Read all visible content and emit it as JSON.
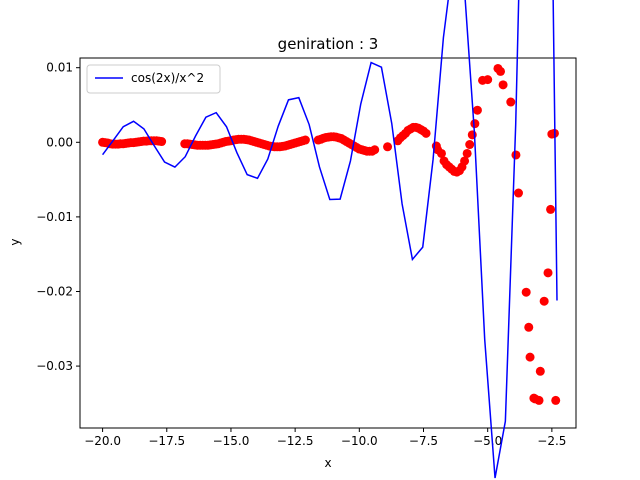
{
  "chart_data": {
    "type": "line",
    "title": "geniration : 3",
    "xlabel": "x",
    "ylabel": "y",
    "xlim": [
      -20.88,
      -1.56
    ],
    "ylim": [
      -0.0383,
      0.0113
    ],
    "x_ticks": [
      -20.0,
      -17.5,
      -15.0,
      -12.5,
      -10.0,
      -7.5,
      -5.0,
      -2.5
    ],
    "x_tick_labels": [
      "−20.0",
      "−17.5",
      "−15.0",
      "−12.5",
      "−10.0",
      "−7.5",
      "−5.0",
      "−2.5"
    ],
    "y_ticks": [
      0.01,
      0.0,
      -0.01,
      -0.02,
      -0.03
    ],
    "y_tick_labels": [
      "0.01",
      "0.00",
      "−0.01",
      "−0.02",
      "−0.03"
    ],
    "legend_position": "top-left",
    "series": [
      {
        "name": "cos(2x)/x^2",
        "kind": "line",
        "color": "#0000ff",
        "function": "cos(2x)/x^2",
        "x_range": [
          -20.0,
          -2.3
        ],
        "samples": 45
      },
      {
        "name": "",
        "kind": "scatter",
        "color": "#ff0000",
        "x": [
          -20.0,
          -19.9,
          -19.8,
          -19.7,
          -19.6,
          -19.5,
          -19.4,
          -19.3,
          -19.2,
          -19.1,
          -19.0,
          -18.9,
          -18.8,
          -18.7,
          -18.6,
          -18.5,
          -18.4,
          -18.3,
          -18.2,
          -18.1,
          -18.0,
          -17.9,
          -17.8,
          -17.7,
          -16.8,
          -16.7,
          -16.6,
          -16.5,
          -16.4,
          -16.3,
          -16.2,
          -16.1,
          -16.0,
          -15.9,
          -15.8,
          -15.7,
          -15.6,
          -15.5,
          -15.4,
          -15.3,
          -15.2,
          -15.1,
          -15.0,
          -14.9,
          -14.8,
          -14.7,
          -14.6,
          -14.5,
          -14.4,
          -14.3,
          -14.2,
          -14.1,
          -14.0,
          -13.9,
          -13.8,
          -13.7,
          -13.6,
          -13.5,
          -13.4,
          -13.3,
          -13.2,
          -13.1,
          -13.0,
          -12.9,
          -12.8,
          -12.7,
          -12.6,
          -12.5,
          -12.4,
          -12.3,
          -12.2,
          -12.1,
          -11.6,
          -11.5,
          -11.4,
          -11.3,
          -11.2,
          -11.1,
          -11.0,
          -10.9,
          -10.8,
          -10.7,
          -10.6,
          -10.5,
          -10.4,
          -10.3,
          -10.2,
          -10.1,
          -10.0,
          -9.9,
          -9.8,
          -9.7,
          -9.6,
          -9.5,
          -9.4,
          -8.9,
          -8.5,
          -8.4,
          -8.3,
          -8.2,
          -8.1,
          -8.0,
          -7.9,
          -7.8,
          -7.7,
          -7.6,
          -7.5,
          -7.4,
          -7.0,
          -6.95,
          -6.8,
          -6.7,
          -6.6,
          -6.5,
          -6.4,
          -6.3,
          -6.2,
          -6.1,
          -6.0,
          -5.9,
          -5.8,
          -5.7,
          -5.6,
          -5.5,
          -5.4,
          -5.2,
          -5.0,
          -4.6,
          -4.5,
          -4.4,
          -4.1,
          -3.9,
          -3.8,
          -3.5,
          -3.4,
          -3.35,
          -3.2,
          -3.15,
          -3.0,
          -2.95,
          -2.8,
          -2.65,
          -2.55,
          -2.5,
          -2.4,
          -2.35
        ],
        "y": [
          0.0,
          -5e-05,
          -0.0001,
          -0.0002,
          -0.00025,
          -0.00025,
          -0.00025,
          -0.0002,
          -0.0002,
          -0.00015,
          -0.0001,
          -5e-05,
          -5e-05,
          0.0,
          5e-05,
          0.0001,
          0.00015,
          0.00015,
          0.0002,
          0.0002,
          0.0002,
          0.0002,
          0.00015,
          0.0001,
          -0.0002,
          -0.0002,
          -0.00025,
          -0.0003,
          -0.00035,
          -0.0004,
          -0.0004,
          -0.0004,
          -0.0004,
          -0.0004,
          -0.00035,
          -0.0003,
          -0.00025,
          -0.0002,
          -0.0001,
          0.0,
          0.0001,
          0.00015,
          0.0002,
          0.0003,
          0.00035,
          0.0004,
          0.0004,
          0.0004,
          0.00035,
          0.0003,
          0.0002,
          0.0001,
          0.0,
          -0.0001,
          -0.0002,
          -0.0003,
          -0.0004,
          -0.0005,
          -0.00055,
          -0.0006,
          -0.0006,
          -0.0006,
          -0.00055,
          -0.0005,
          -0.0004,
          -0.0003,
          -0.0002,
          -0.0001,
          0.0,
          0.0001,
          0.0002,
          0.0003,
          0.0003,
          0.0004,
          0.00055,
          0.00065,
          0.0007,
          0.00075,
          0.00075,
          0.0007,
          0.0006,
          0.0005,
          0.0003,
          0.0001,
          -0.0001,
          -0.0003,
          -0.0005,
          -0.0007,
          -0.0009,
          -0.001,
          -0.0011,
          -0.0012,
          -0.0012,
          -0.0012,
          -0.001,
          -0.0006,
          0.0002,
          0.0006,
          0.0009,
          0.0012,
          0.0016,
          0.0018,
          0.002,
          0.002,
          0.0019,
          0.0017,
          0.0015,
          0.0012,
          -0.0005,
          -0.001,
          -0.0015,
          -0.0025,
          -0.003,
          -0.0033,
          -0.0036,
          -0.0039,
          -0.004,
          -0.0038,
          -0.0033,
          -0.0025,
          -0.0015,
          -0.0003,
          0.001,
          0.0025,
          0.0043,
          0.0083,
          0.0084,
          0.0099,
          0.0095,
          0.0077,
          0.0054,
          -0.0017,
          -0.0068,
          -0.0201,
          -0.0248,
          -0.0288,
          -0.0343,
          -0.0344,
          -0.0346,
          -0.0307,
          -0.0213,
          -0.0175,
          -0.009,
          0.0011,
          0.0012,
          -0.0346
        ]
      }
    ]
  }
}
